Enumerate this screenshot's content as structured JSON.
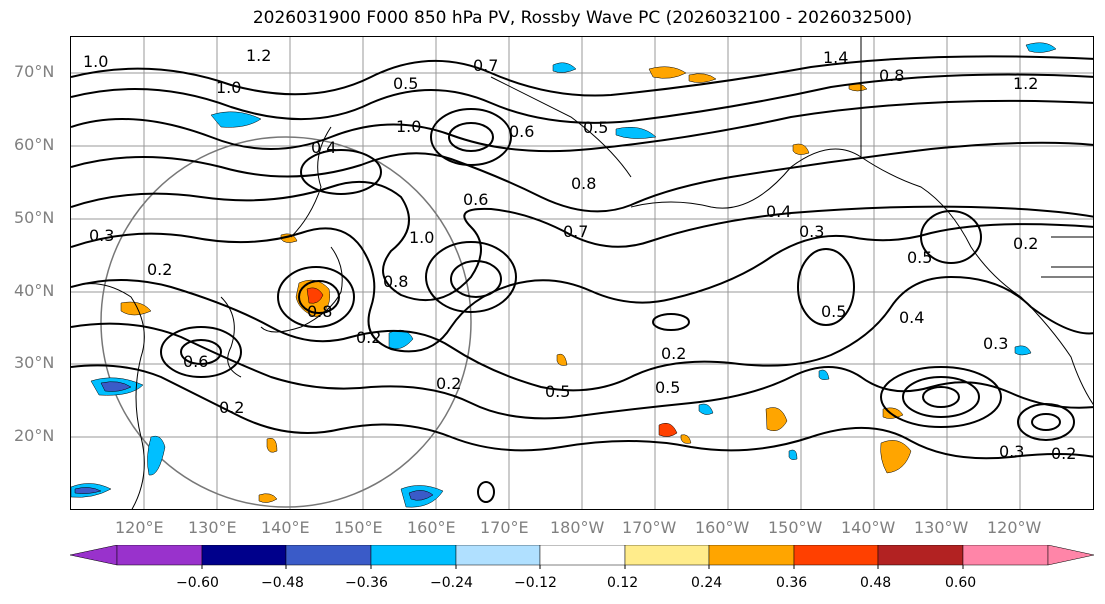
{
  "title": "2026031900 F000 850 hPa PV, Rossby Wave PC (2026032100 - 2026032500)",
  "lat_labels": [
    "70°N",
    "60°N",
    "50°N",
    "40°N",
    "30°N",
    "20°N"
  ],
  "lon_labels": [
    "120°E",
    "130°E",
    "140°E",
    "150°E",
    "160°E",
    "170°E",
    "180°W",
    "170°W",
    "160°W",
    "150°W",
    "140°W",
    "130°W",
    "120°W"
  ],
  "contour_labels": [
    "1.0",
    "1.2",
    "1.0",
    "0.5",
    "0.7",
    "1.4",
    "0.8",
    "1.2",
    "0.4",
    "1.0",
    "0.6",
    "0.5",
    "0.8",
    "0.6",
    "0.4",
    "0.3",
    "0.7",
    "1.0",
    "0.8",
    "0.2",
    "0.3",
    "0.8",
    "0.6",
    "0.2",
    "0.5",
    "0.2",
    "0.5",
    "0.5",
    "0.5",
    "0.4",
    "0.3",
    "0.2",
    "0.3",
    "0.2",
    "0.2",
    "0.2"
  ],
  "colorbar": {
    "ticks": [
      "−0.60",
      "−0.48",
      "−0.36",
      "−0.24",
      "−0.12",
      "0.12",
      "0.24",
      "0.36",
      "0.48",
      "0.60"
    ],
    "colors": [
      "#9932CC",
      "#00008B",
      "#3A5BC8",
      "#00BFFF",
      "#B0E0FF",
      "#FFFFFF",
      "#FFEC8B",
      "#FFA500",
      "#FF4000",
      "#B22222",
      "#FF85A8"
    ]
  },
  "colors": {
    "frame": "#000000",
    "grid": "#999999",
    "contour": "#000000",
    "coast": "#000000",
    "axis_label": "#808080"
  }
}
